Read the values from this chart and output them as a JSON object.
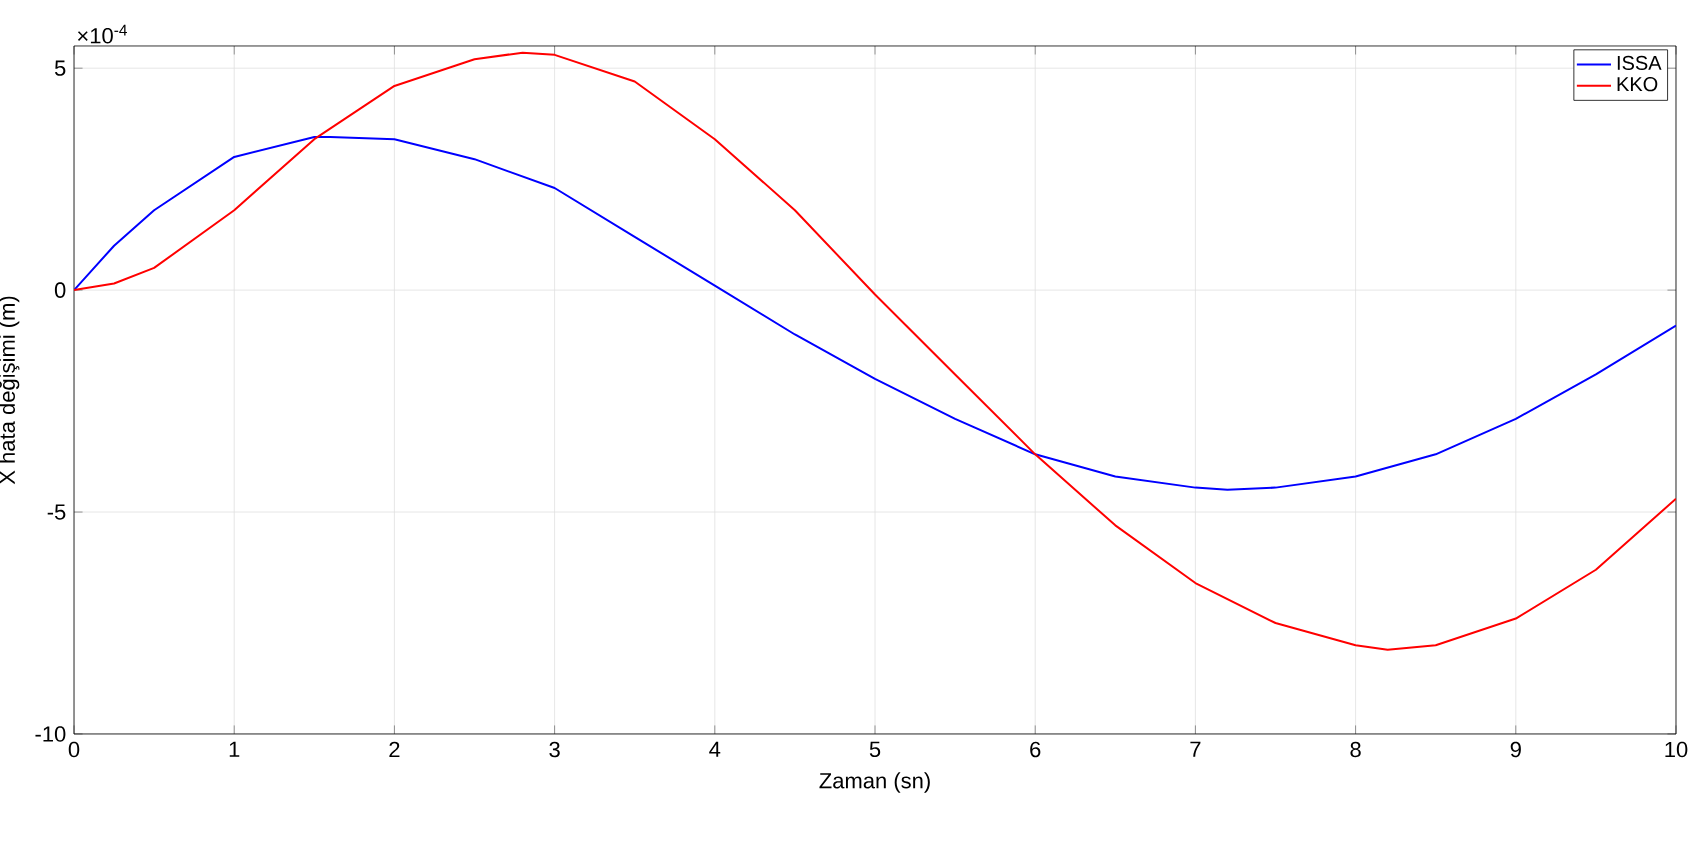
{
  "chart_data": {
    "type": "line",
    "xlabel": "Zaman (sn)",
    "ylabel": "X hata değişimi (m)",
    "annotations": [
      "×10$^{-4}$"
    ],
    "xlim": [
      0,
      10
    ],
    "ylim": [
      -10,
      5.5
    ],
    "xticks": [
      0,
      1,
      2,
      3,
      4,
      5,
      6,
      7,
      8,
      9,
      10
    ],
    "yticks": [
      -10,
      -5,
      0,
      5
    ],
    "grid": true,
    "legend": "top right",
    "line_style": "solid",
    "marker": "none",
    "series": [
      {
        "name": "ISSA",
        "color": "#0000ff",
        "x": [
          0,
          0.25,
          0.5,
          1,
          1.5,
          1.6,
          2,
          2.5,
          3,
          3.5,
          4,
          4.5,
          5,
          5.5,
          6,
          6.5,
          7,
          7.2,
          7.5,
          8,
          8.5,
          9,
          9.5,
          10
        ],
        "values": [
          0,
          1.0,
          1.8,
          3.0,
          3.45,
          3.45,
          3.4,
          2.95,
          2.3,
          1.2,
          0.1,
          -1.0,
          -2.0,
          -2.9,
          -3.7,
          -4.2,
          -4.45,
          -4.5,
          -4.45,
          -4.2,
          -3.7,
          -2.9,
          -1.9,
          -0.8
        ]
      },
      {
        "name": "KKO",
        "color": "#ff0000",
        "x": [
          0,
          0.25,
          0.5,
          1,
          1.5,
          2,
          2.5,
          2.8,
          3,
          3.5,
          4,
          4.5,
          5,
          5.5,
          6,
          6.5,
          7,
          7.5,
          8,
          8.2,
          8.5,
          9,
          9.5,
          10
        ],
        "values": [
          0,
          0.15,
          0.5,
          1.8,
          3.4,
          4.6,
          5.2,
          5.35,
          5.3,
          4.7,
          3.4,
          1.8,
          -0.1,
          -1.9,
          -3.7,
          -5.3,
          -6.6,
          -7.5,
          -8.0,
          -8.1,
          -8.0,
          -7.4,
          -6.3,
          -4.7
        ]
      }
    ]
  }
}
